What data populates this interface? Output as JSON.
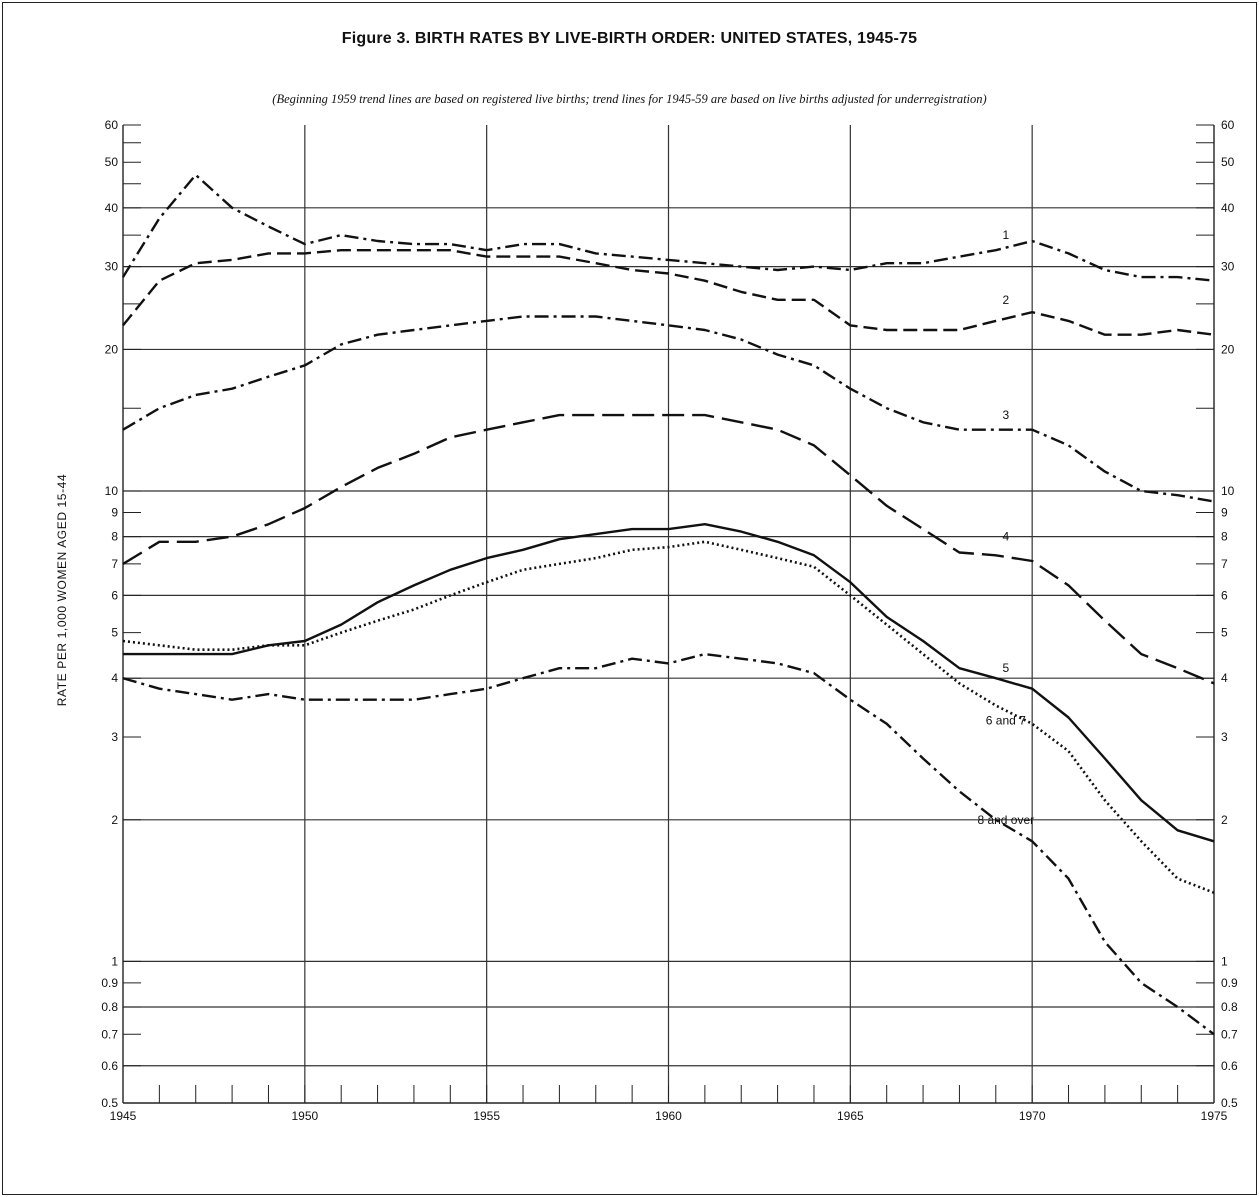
{
  "chart_data": {
    "type": "line",
    "title": "Figure 3.  BIRTH RATES BY LIVE-BIRTH ORDER: UNITED STATES, 1945-75",
    "subtitle": "(Beginning 1959 trend lines are based on registered live births; trend lines for 1945-59 are based on live births adjusted for underregistration)",
    "xlabel": "",
    "ylabel": "RATE PER 1,000 WOMEN AGED 15-44",
    "xlim": [
      1945,
      1975
    ],
    "ylim": [
      0.5,
      60
    ],
    "yscale": "log",
    "grid": true,
    "x_ticks": [
      "1945",
      "1950",
      "1955",
      "1960",
      "1965",
      "1970",
      "1975"
    ],
    "x_tick_values": [
      1945,
      1950,
      1955,
      1960,
      1965,
      1970,
      1975
    ],
    "y_ticks": [
      "0.5",
      "0.6",
      "0.7",
      "0.8",
      "0.9",
      "1",
      "2",
      "3",
      "4",
      "5",
      "6",
      "7",
      "8",
      "9",
      "10",
      "20",
      "30",
      "40",
      "50",
      "60"
    ],
    "y_tick_values": [
      0.5,
      0.6,
      0.7,
      0.8,
      0.9,
      1,
      2,
      3,
      4,
      5,
      6,
      7,
      8,
      9,
      10,
      20,
      30,
      40,
      50,
      60
    ],
    "x": [
      1945,
      1946,
      1947,
      1948,
      1949,
      1950,
      1951,
      1952,
      1953,
      1954,
      1955,
      1956,
      1957,
      1958,
      1959,
      1960,
      1961,
      1962,
      1963,
      1964,
      1965,
      1966,
      1967,
      1968,
      1969,
      1970,
      1971,
      1972,
      1973,
      1974,
      1975
    ],
    "series": [
      {
        "name": "1",
        "label_x": 1969,
        "label_y": 35,
        "line": "dashdot",
        "values": [
          28.5,
          38,
          47,
          40,
          36.5,
          33.5,
          35,
          34,
          33.5,
          33.5,
          32.5,
          33.5,
          33.5,
          32,
          31.5,
          31,
          30.5,
          30,
          29.5,
          30,
          29.5,
          30.5,
          30.5,
          31.5,
          32.5,
          34,
          32,
          29.5,
          28.5,
          28.5,
          28
        ]
      },
      {
        "name": "2",
        "label_x": 1969,
        "label_y": 25.5,
        "line": "dashed",
        "values": [
          22.5,
          28,
          30.5,
          31,
          32,
          32,
          32.5,
          32.5,
          32.5,
          32.5,
          31.5,
          31.5,
          31.5,
          30.5,
          29.5,
          29,
          28,
          26.5,
          25.5,
          25.5,
          22.5,
          22,
          22,
          22,
          23,
          24,
          23,
          21.5,
          21.5,
          22,
          21.5
        ]
      },
      {
        "name": "3",
        "label_x": 1969,
        "label_y": 14.5,
        "line": "dashdot",
        "values": [
          13.5,
          15,
          16,
          16.5,
          17.5,
          18.5,
          20.5,
          21.5,
          22,
          22.5,
          23,
          23.5,
          23.5,
          23.5,
          23,
          22.5,
          22,
          21,
          19.5,
          18.5,
          16.5,
          15,
          14,
          13.5,
          13.5,
          13.5,
          12.5,
          11,
          10,
          9.8,
          9.5
        ]
      },
      {
        "name": "4",
        "label_x": 1969,
        "label_y": 8.0,
        "line": "longdash",
        "values": [
          7,
          7.8,
          7.8,
          8,
          8.5,
          9.2,
          10.2,
          11.2,
          12,
          13,
          13.5,
          14,
          14.5,
          14.5,
          14.5,
          14.5,
          14.5,
          14,
          13.5,
          12.5,
          10.8,
          9.3,
          8.3,
          7.4,
          7.3,
          7.1,
          6.3,
          5.3,
          4.5,
          4.2,
          3.9
        ]
      },
      {
        "name": "5",
        "label_x": 1969,
        "label_y": 4.2,
        "line": "solid",
        "values": [
          4.5,
          4.5,
          4.5,
          4.5,
          4.7,
          4.8,
          5.2,
          5.8,
          6.3,
          6.8,
          7.2,
          7.5,
          7.9,
          8.1,
          8.3,
          8.3,
          8.5,
          8.2,
          7.8,
          7.3,
          6.4,
          5.4,
          4.8,
          4.2,
          4,
          3.8,
          3.3,
          2.7,
          2.2,
          1.9,
          1.8
        ]
      },
      {
        "name": "6 and 7",
        "label_x": 1969,
        "label_y": 3.25,
        "line": "dotted",
        "values": [
          4.8,
          4.7,
          4.6,
          4.6,
          4.7,
          4.7,
          5,
          5.3,
          5.6,
          6,
          6.4,
          6.8,
          7,
          7.2,
          7.5,
          7.6,
          7.8,
          7.5,
          7.2,
          6.9,
          6,
          5.2,
          4.5,
          3.9,
          3.5,
          3.2,
          2.8,
          2.2,
          1.8,
          1.5,
          1.4
        ]
      },
      {
        "name": "8 and over",
        "label_x": 1969,
        "label_y": 2.0,
        "line": "dashdot",
        "values": [
          4,
          3.8,
          3.7,
          3.6,
          3.7,
          3.6,
          3.6,
          3.6,
          3.6,
          3.7,
          3.8,
          4,
          4.2,
          4.2,
          4.4,
          4.3,
          4.5,
          4.4,
          4.3,
          4.1,
          3.6,
          3.2,
          2.7,
          2.3,
          2,
          1.8,
          1.5,
          1.1,
          0.9,
          0.8,
          0.7
        ]
      }
    ]
  }
}
